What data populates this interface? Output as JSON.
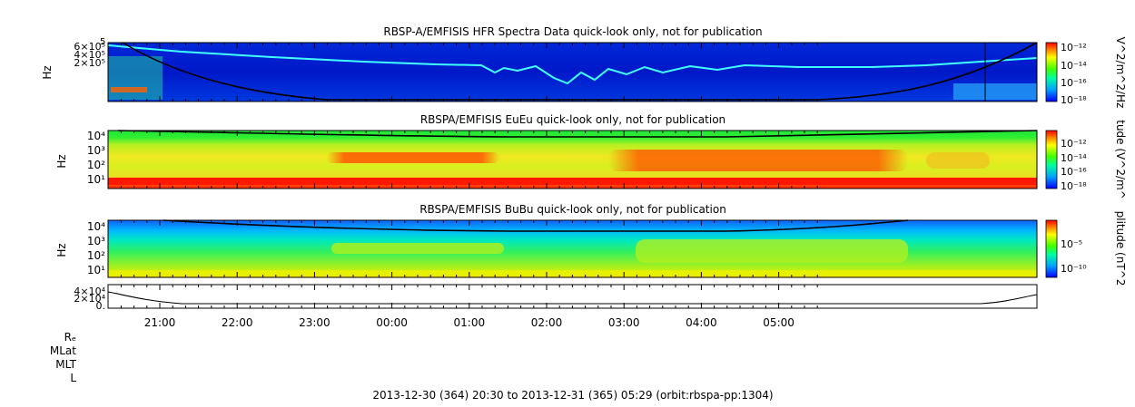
{
  "footer": "2013-12-30 (364) 20:30 to 2013-12-31 (365) 05:29 (orbit:rbspa-pp:1304)",
  "orbit_labels": [
    "Rₑ",
    "MLat",
    "MLT",
    "L"
  ],
  "time_ticks": [
    "21:00",
    "22:00",
    "23:00",
    "00:00",
    "01:00",
    "02:00",
    "03:00",
    "04:00",
    "05:00"
  ],
  "colors": {
    "low": "#0000ff",
    "mid": "#00ff00",
    "high": "#ff0000",
    "line": "#000000"
  },
  "chart_data": [
    {
      "type": "heatmap",
      "title": "RBSP-A/EMFISIS  HFR Spectra Data quick-look only, not for publication",
      "ylabel": "Hz",
      "yscale": "log",
      "ytick_labels": [
        "6×10⁵",
        "4×10⁵",
        "2×10⁵"
      ],
      "ytick_exponent_label": "5",
      "colorbar_label": "V^2/m^2/Hz",
      "colorbar_ticks": [
        "10⁻¹²",
        "10⁻¹⁴",
        "10⁻¹⁶",
        "10⁻¹⁸"
      ]
    },
    {
      "type": "heatmap",
      "title": "RBSPA/EMFISIS  EuEu quick-look only, not for publication",
      "ylabel": "Hz",
      "yscale": "log",
      "ytick_labels": [
        "10⁴",
        "10³",
        "10²",
        "10¹"
      ],
      "colorbar_label": "tude (V^2/m^",
      "colorbar_ticks": [
        "10⁻¹²",
        "10⁻¹⁴",
        "10⁻¹⁶",
        "10⁻¹⁸"
      ]
    },
    {
      "type": "heatmap",
      "title": "RBSPA/EMFISIS  BuBu quick-look only, not for publication",
      "ylabel": "Hz",
      "yscale": "log",
      "ytick_labels": [
        "10⁴",
        "10³",
        "10²",
        "10¹"
      ],
      "colorbar_label": "plitude (nT^2",
      "colorbar_ticks": [
        "10⁻⁵",
        "10⁻¹⁰"
      ]
    },
    {
      "type": "line",
      "ytick_labels": [
        "4×10⁴",
        "2×10⁴",
        "0."
      ],
      "ylim": [
        0,
        40000
      ]
    }
  ]
}
